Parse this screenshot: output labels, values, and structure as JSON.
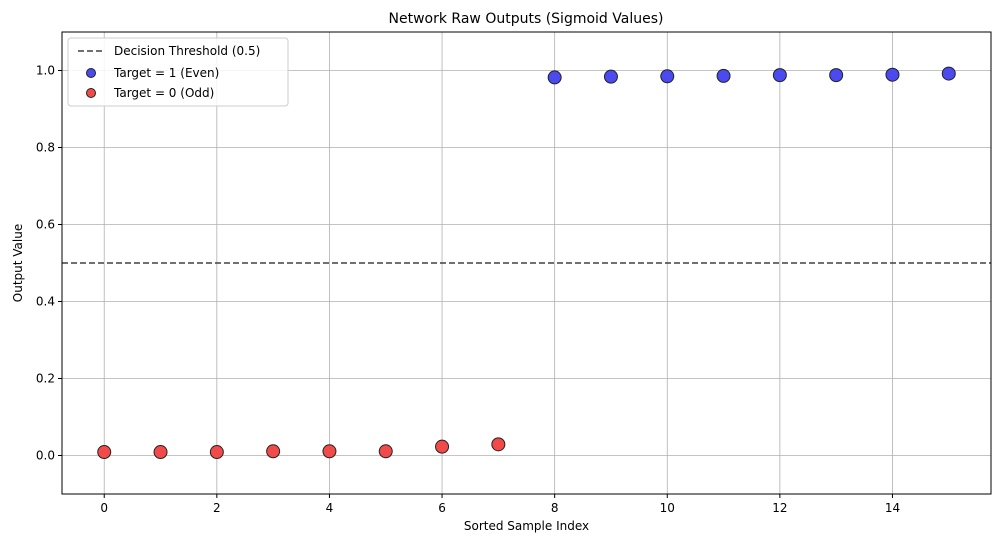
{
  "chart_data": {
    "type": "scatter",
    "title": "Network Raw Outputs (Sigmoid Values)",
    "xlabel": "Sorted Sample Index",
    "ylabel": "Output Value",
    "xlim": [
      -0.75,
      15.75
    ],
    "ylim": [
      -0.1,
      1.1
    ],
    "xticks": [
      0,
      2,
      4,
      6,
      8,
      10,
      12,
      14
    ],
    "yticks": [
      0.0,
      0.2,
      0.4,
      0.6,
      0.8,
      1.0
    ],
    "xtick_labels": [
      "0",
      "2",
      "4",
      "6",
      "8",
      "10",
      "12",
      "14"
    ],
    "ytick_labels": [
      "0.0",
      "0.2",
      "0.4",
      "0.6",
      "0.8",
      "1.0"
    ],
    "grid": true,
    "legend_position": "top-left",
    "threshold": {
      "name": "Decision Threshold (0.5)",
      "value": 0.5,
      "color": "#404040"
    },
    "series": [
      {
        "name": "Target = 1 (Even)",
        "color": "#4a4af0",
        "x": [
          8,
          9,
          10,
          11,
          12,
          13,
          14,
          15
        ],
        "y": [
          0.982,
          0.984,
          0.985,
          0.986,
          0.988,
          0.988,
          0.989,
          0.992
        ]
      },
      {
        "name": "Target = 0 (Odd)",
        "color": "#f04a4a",
        "x": [
          0,
          1,
          2,
          3,
          4,
          5,
          6,
          7
        ],
        "y": [
          0.009,
          0.009,
          0.009,
          0.011,
          0.011,
          0.011,
          0.023,
          0.029
        ]
      }
    ]
  }
}
